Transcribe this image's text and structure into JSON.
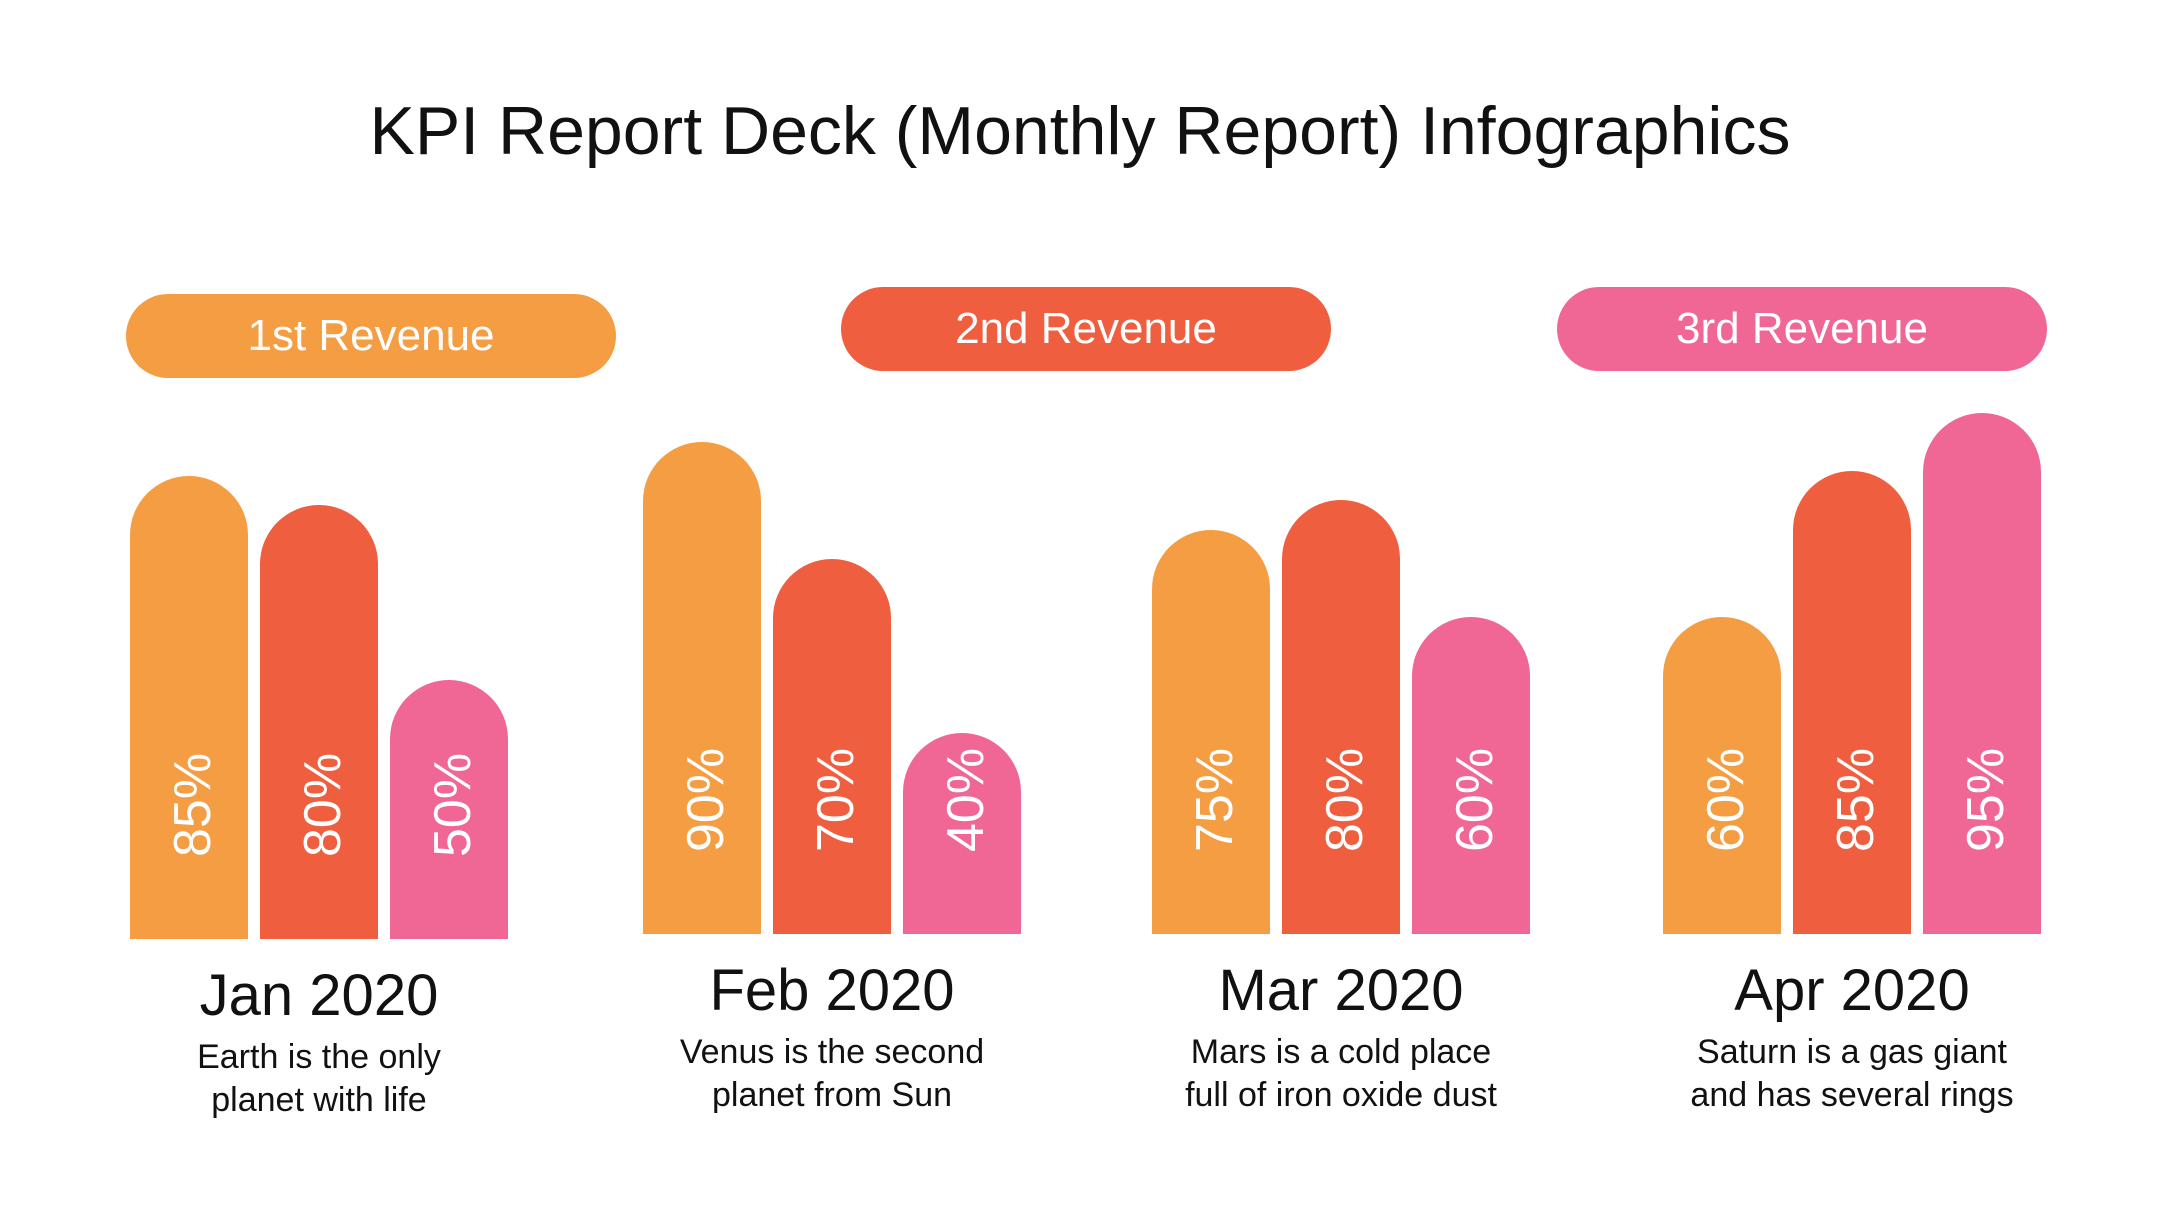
{
  "colors": {
    "orange": "#F49D42",
    "red": "#EE5E3F",
    "pink": "#F06695"
  },
  "chart_data": {
    "type": "bar",
    "title": "KPI Report Deck (Monthly Report) Infographics",
    "categories": [
      "Jan 2020",
      "Feb 2020",
      "Mar 2020",
      "Apr 2020"
    ],
    "series": [
      {
        "name": "1st Revenue",
        "color": "#F49D42",
        "values": [
          85,
          90,
          75,
          60
        ]
      },
      {
        "name": "2nd Revenue",
        "color": "#EE5E3F",
        "values": [
          80,
          70,
          80,
          85
        ]
      },
      {
        "name": "3rd Revenue",
        "color": "#F06695",
        "values": [
          50,
          40,
          60,
          95
        ]
      }
    ],
    "value_labels": [
      [
        "85%",
        "80%",
        "50%"
      ],
      [
        "90%",
        "70%",
        "40%"
      ],
      [
        "75%",
        "80%",
        "60%"
      ],
      [
        "60%",
        "85%",
        "95%"
      ]
    ],
    "descriptions": [
      [
        "Earth is the only",
        "planet with life"
      ],
      [
        "Venus is the second",
        "planet from Sun"
      ],
      [
        "Mars is a cold place",
        "full of iron oxide dust"
      ],
      [
        "Saturn is a gas giant",
        "and has several rings"
      ]
    ],
    "legend_placement": "top",
    "grid": false
  }
}
